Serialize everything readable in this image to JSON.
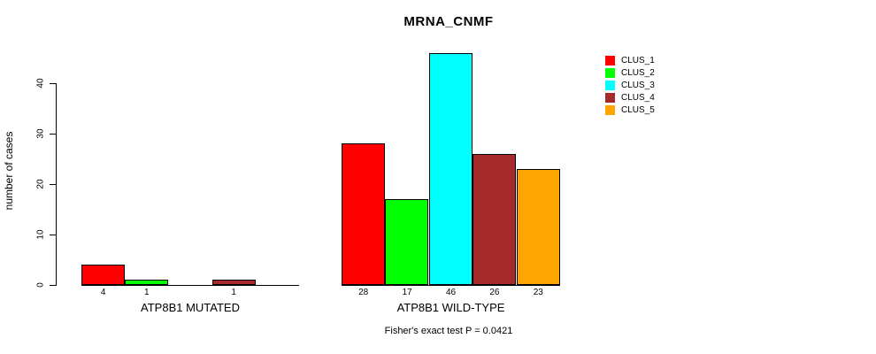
{
  "chart_data": {
    "type": "bar",
    "title": "MRNA_CNMF",
    "ylabel": "number of cases",
    "ylim": [
      0,
      46
    ],
    "yticks": [
      0,
      10,
      20,
      30,
      40
    ],
    "grid": false,
    "legend_position": "right",
    "bar_value_labels_shown": true,
    "categories": [
      "ATP8B1 MUTATED",
      "ATP8B1 WILD-TYPE"
    ],
    "series": [
      {
        "name": "CLUS_1",
        "color": "#ff0000",
        "values": [
          4,
          28
        ]
      },
      {
        "name": "CLUS_2",
        "color": "#00ff00",
        "values": [
          1,
          17
        ]
      },
      {
        "name": "CLUS_3",
        "color": "#00ffff",
        "values": [
          0,
          46
        ]
      },
      {
        "name": "CLUS_4",
        "color": "#a52a2a",
        "values": [
          1,
          26
        ]
      },
      {
        "name": "CLUS_5",
        "color": "#ffa500",
        "values": [
          0,
          23
        ]
      }
    ],
    "annotation": "Fisher's exact test P = 0.0421"
  }
}
